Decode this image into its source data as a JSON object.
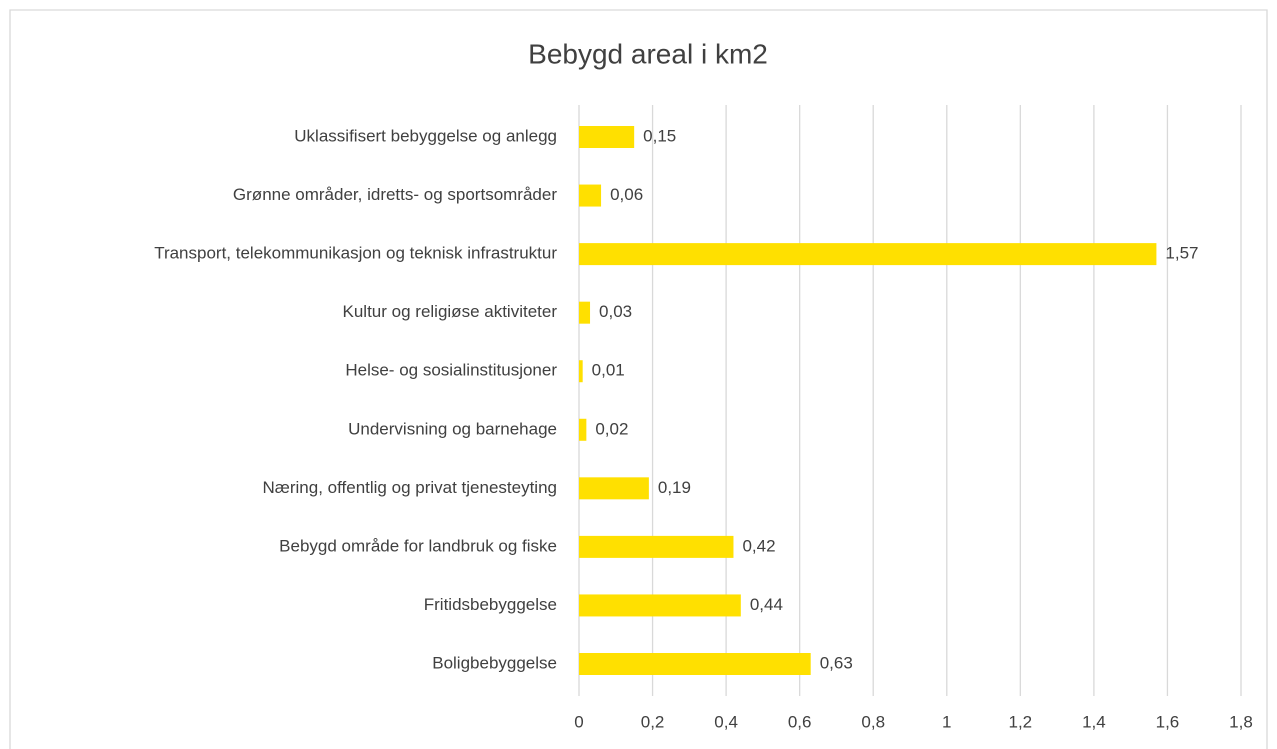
{
  "chart_data": {
    "type": "barh",
    "title": "Bebygd areal i km2",
    "categories": [
      "Uklassifisert bebyggelse og anlegg",
      "Grønne områder, idretts- og sportsområder",
      "Transport, telekommunikasjon og teknisk infrastruktur",
      "Kultur og religiøse aktiviteter",
      "Helse- og sosialinstitusjoner",
      "Undervisning og barnehage",
      "Næring, offentlig og privat tjenesteyting",
      "Bebygd område for landbruk og fiske",
      "Fritidsbebyggelse",
      "Boligbebyggelse"
    ],
    "values": [
      0.15,
      0.06,
      1.57,
      0.03,
      0.01,
      0.02,
      0.19,
      0.42,
      0.44,
      0.63
    ],
    "value_labels": [
      "0,15",
      "0,06",
      "1,57",
      "0,03",
      "0,01",
      "0,02",
      "0,19",
      "0,42",
      "0,44",
      "0,63"
    ],
    "color": "#ffe000",
    "xlim": [
      0,
      1.8
    ],
    "xticks": [
      0,
      {
        "value": 0.2,
        "label": "0,2"
      },
      {
        "value": 0.4,
        "label": "0,4"
      },
      {
        "value": 0.6,
        "label": "0,6"
      },
      {
        "value": 0.8,
        "label": "0,8"
      },
      1,
      {
        "value": 1.2,
        "label": "1,2"
      },
      {
        "value": 1.4,
        "label": "1,4"
      },
      {
        "value": 1.6,
        "label": "1,6"
      },
      {
        "value": 1.8,
        "label": "1,8"
      }
    ],
    "grid": true
  }
}
